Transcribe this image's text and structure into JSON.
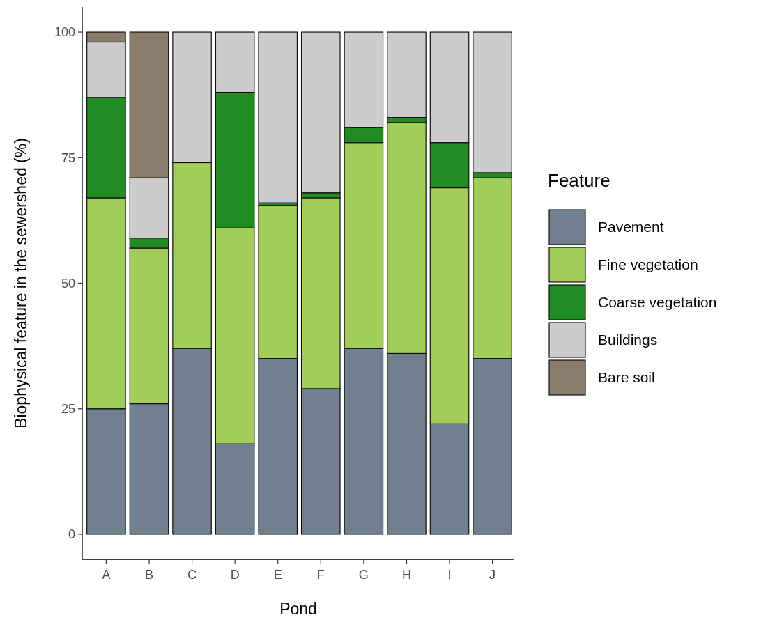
{
  "chart_data": {
    "type": "bar",
    "stacked": true,
    "xlabel": "Pond",
    "ylabel": "Biophysical feature in the sewershed (%)",
    "legend_title": "Feature",
    "legend": "right",
    "grid": false,
    "categories": [
      "A",
      "B",
      "C",
      "D",
      "E",
      "F",
      "G",
      "H",
      "I",
      "J"
    ],
    "ylim": [
      -5,
      105
    ],
    "yticks": [
      0,
      25,
      50,
      75,
      100
    ],
    "series": [
      {
        "name": "Pavement",
        "color": "#708090",
        "values": [
          25,
          26,
          37,
          18,
          35,
          29,
          37,
          36,
          22,
          35
        ]
      },
      {
        "name": "Fine vegetation",
        "color": "#a2cd5a",
        "values": [
          42,
          31,
          37,
          43,
          30.5,
          38,
          41,
          46,
          47,
          36
        ]
      },
      {
        "name": "Coarse vegetation",
        "color": "#228b22",
        "values": [
          20,
          2,
          0,
          27,
          0.5,
          1,
          3,
          1,
          9,
          1
        ]
      },
      {
        "name": "Buildings",
        "color": "#cccccc",
        "values": [
          11,
          12,
          26,
          12,
          34,
          32,
          19,
          17,
          22,
          28
        ]
      },
      {
        "name": "Bare soil",
        "color": "#8b7d6b",
        "values": [
          2,
          29,
          0,
          0,
          0,
          0,
          0,
          0,
          0,
          0
        ]
      }
    ]
  }
}
